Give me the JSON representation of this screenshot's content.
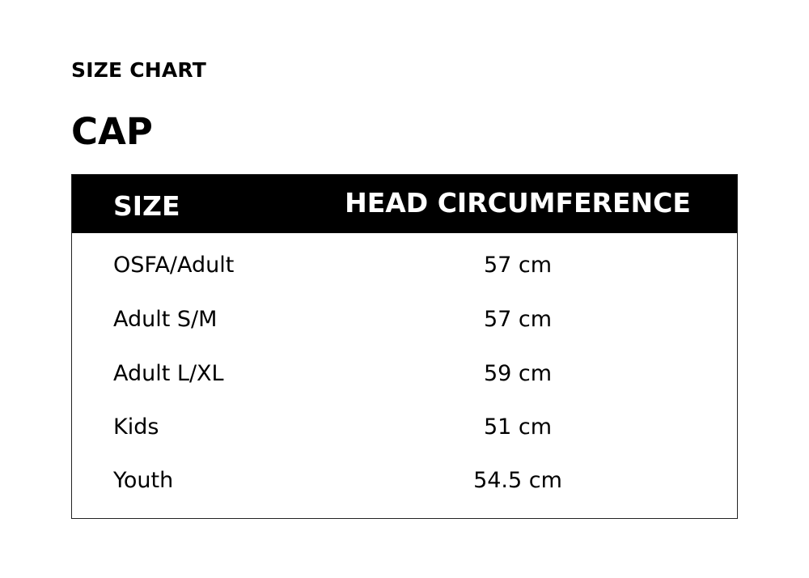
{
  "eyebrow": "SIZE CHART",
  "title": "CAP",
  "table": {
    "headers": [
      "SIZE",
      "HEAD CIRCUMFERENCE"
    ],
    "rows": [
      [
        "OSFA/Adult",
        "57 cm"
      ],
      [
        "Adult S/M",
        "57 cm"
      ],
      [
        "Adult L/XL",
        "59 cm"
      ],
      [
        "Kids",
        "51 cm"
      ],
      [
        "Youth",
        "54.5 cm"
      ]
    ]
  },
  "colors": {
    "header_bg": "#000000",
    "header_text": "#ffffff",
    "body_text": "#000000"
  }
}
